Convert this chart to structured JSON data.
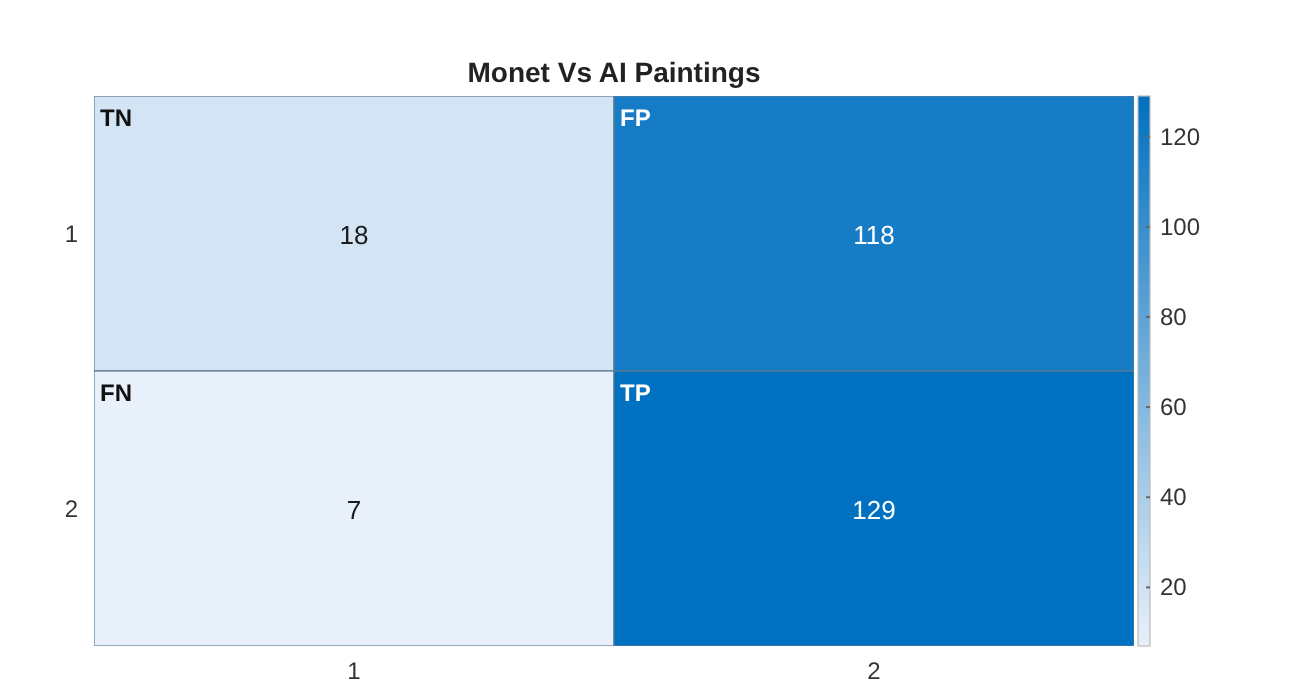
{
  "chart_data": {
    "type": "heatmap",
    "title": "Monet Vs AI Paintings",
    "categories": [
      "1",
      "2"
    ],
    "y_categories": [
      "1",
      "2"
    ],
    "cells": [
      [
        18,
        118
      ],
      [
        7,
        129
      ]
    ],
    "clim": [
      7,
      129
    ],
    "cticks": [
      20,
      40,
      60,
      80,
      100,
      120
    ],
    "data_labels": true,
    "annotations": [
      "TN",
      "FP",
      "FN",
      "TP"
    ]
  }
}
